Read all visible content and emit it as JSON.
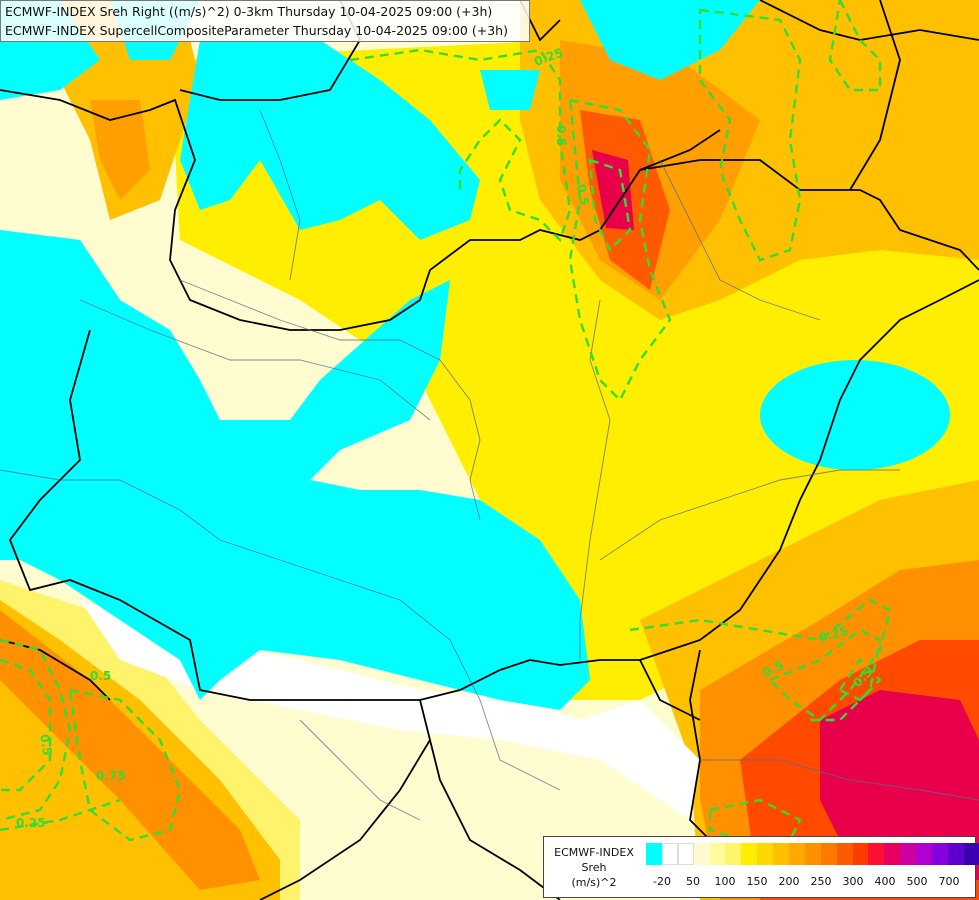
{
  "titles": {
    "line1": "ECMWF-INDEX Sreh Right ((m/s)^2) 0-3km Thursday 10-04-2025 09:00 (+3h)",
    "line2": "ECMWF-INDEX SupercellCompositeParameter Thursday 10-04-2025 09:00 (+3h)"
  },
  "legend": {
    "line1": "ECMWF-INDEX",
    "line2": "Sreh",
    "line3": "(m/s)^2",
    "colors": [
      "#00ffff",
      "#ffffff",
      "#ffffff",
      "#fffacd",
      "#fffa9c",
      "#fff56b",
      "#ffee00",
      "#ffd800",
      "#ffc000",
      "#ffa800",
      "#ff9000",
      "#ff7800",
      "#ff5a00",
      "#ff3c00",
      "#ff1030",
      "#e60060",
      "#d000a0",
      "#b000d0",
      "#8800e0",
      "#6000d0",
      "#3c00b0",
      "#1c0088"
    ],
    "ticks": [
      "-20",
      "50",
      "100",
      "150",
      "200",
      "250",
      "300",
      "400",
      "500",
      "700"
    ]
  },
  "contour_labels": [
    "0.25",
    "0.5",
    "0.5",
    "0.25",
    "0.5",
    "0.5",
    "0.25",
    "0.5",
    "0.75",
    "0.5"
  ],
  "colors": {
    "cyan": "#00ffff",
    "white": "#ffffff",
    "pale_yellow": "#fffdd0",
    "yellow": "#fff000",
    "gold": "#ffc800",
    "orange": "#ffa000",
    "dark_orange": "#ff7000",
    "red": "#ff3010",
    "crimson": "#e8004a",
    "contour": "#33dd33",
    "border": "#000000",
    "river": "#5a6a90"
  }
}
